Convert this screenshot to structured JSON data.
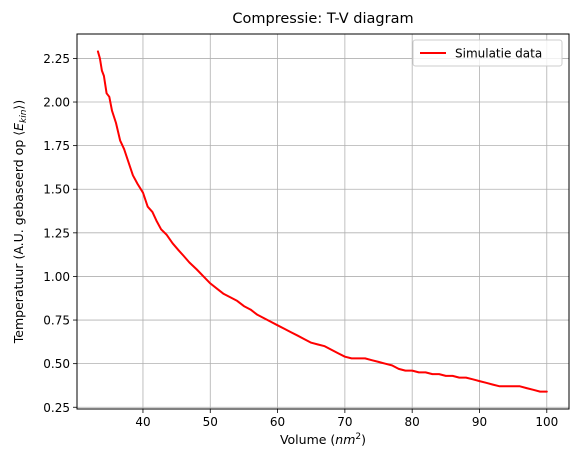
{
  "chart_data": {
    "type": "line",
    "title": "Compressie: T-V diagram",
    "xlabel": "Volume (nm²)",
    "ylabel": "Temperatuur (A.U. gebaseerd op ⟨E_kin⟩)",
    "xlim": [
      30.2,
      103.3
    ],
    "ylim": [
      0.24,
      2.39
    ],
    "xticks": [
      40,
      50,
      60,
      70,
      80,
      90,
      100
    ],
    "yticks": [
      0.25,
      0.5,
      0.75,
      1.0,
      1.25,
      1.5,
      1.75,
      2.0,
      2.25
    ],
    "grid": true,
    "legend_position": "top-right",
    "series": [
      {
        "name": "Simulatie data",
        "color": "#ff0000",
        "x": [
          33.3,
          33.6,
          33.9,
          34.2,
          34.6,
          35.0,
          35.4,
          36.0,
          36.6,
          37.2,
          37.8,
          38.5,
          39.2,
          40.0,
          40.7,
          41.4,
          42.0,
          42.7,
          43.5,
          44.4,
          45.3,
          46.0,
          46.9,
          48.0,
          49.0,
          50.0,
          51.0,
          52.0,
          53.0,
          54.0,
          55.0,
          56.0,
          57.0,
          58.0,
          59.0,
          60.0,
          61.0,
          62.0,
          63.0,
          64.0,
          65.0,
          66.0,
          67.0,
          68.0,
          69.0,
          70.0,
          71.0,
          72.0,
          73.0,
          74.0,
          75.0,
          76.0,
          77.0,
          78.0,
          79.0,
          80.0,
          81.0,
          82.0,
          83.0,
          84.0,
          85.0,
          86.0,
          87.0,
          88.0,
          89.0,
          90.0,
          91.0,
          92.0,
          93.0,
          94.0,
          95.0,
          96.0,
          97.0,
          98.0,
          99.0,
          100.0
        ],
        "y": [
          2.29,
          2.25,
          2.18,
          2.15,
          2.05,
          2.03,
          1.95,
          1.88,
          1.78,
          1.73,
          1.66,
          1.58,
          1.53,
          1.48,
          1.4,
          1.37,
          1.32,
          1.27,
          1.24,
          1.19,
          1.15,
          1.12,
          1.08,
          1.04,
          1.0,
          0.96,
          0.93,
          0.9,
          0.88,
          0.86,
          0.83,
          0.81,
          0.78,
          0.76,
          0.74,
          0.72,
          0.7,
          0.68,
          0.66,
          0.64,
          0.62,
          0.61,
          0.6,
          0.58,
          0.56,
          0.54,
          0.53,
          0.53,
          0.53,
          0.52,
          0.51,
          0.5,
          0.49,
          0.47,
          0.46,
          0.46,
          0.45,
          0.45,
          0.44,
          0.44,
          0.43,
          0.43,
          0.42,
          0.42,
          0.41,
          0.4,
          0.39,
          0.38,
          0.37,
          0.37,
          0.37,
          0.37,
          0.36,
          0.35,
          0.34,
          0.34
        ]
      }
    ]
  }
}
